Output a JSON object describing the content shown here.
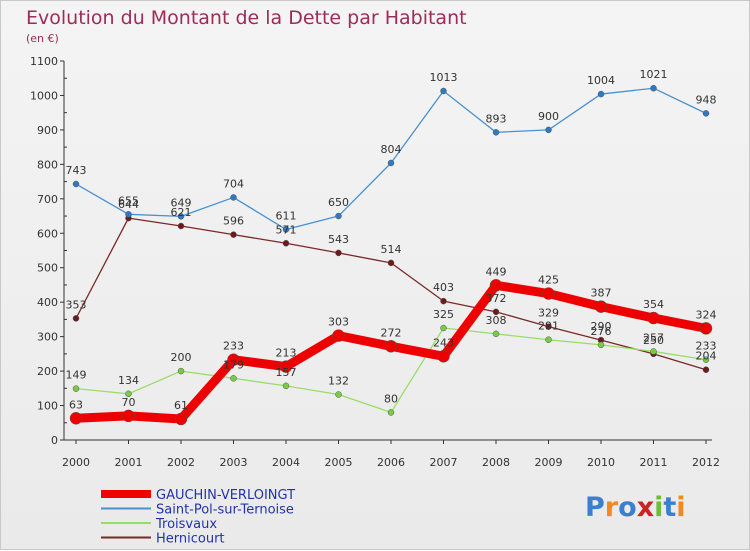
{
  "chart_data": {
    "type": "line",
    "title": "Evolution du Montant de la Dette par Habitant",
    "subtitle": "(en €)",
    "xlabel": "",
    "ylabel": "",
    "ylim": [
      0,
      1100
    ],
    "yticks": [
      0,
      100,
      200,
      300,
      400,
      500,
      600,
      700,
      800,
      900,
      1000,
      1100
    ],
    "categories": [
      "2000",
      "2001",
      "2002",
      "2003",
      "2004",
      "2005",
      "2006",
      "2007",
      "2008",
      "2009",
      "2010",
      "2011",
      "2012"
    ],
    "series": [
      {
        "name": "Hernicourt",
        "color": "#7a2828",
        "values": [
          353,
          644,
          621,
          596,
          571,
          543,
          514,
          403,
          372,
          329,
          290,
          250,
          204
        ]
      },
      {
        "name": "Troisvaux",
        "color": "#99dd66",
        "values": [
          149,
          134,
          200,
          179,
          157,
          132,
          80,
          325,
          308,
          291,
          276,
          257,
          233
        ]
      },
      {
        "name": "Saint-Pol-sur-Ternoise",
        "color": "#4a90d0",
        "values": [
          743,
          655,
          649,
          704,
          611,
          650,
          804,
          1013,
          893,
          900,
          1004,
          1021,
          948
        ]
      },
      {
        "name": "GAUCHIN-VERLOINGT",
        "color": "#ee0000",
        "values": [
          63,
          70,
          61,
          233,
          213,
          303,
          272,
          243,
          449,
          425,
          387,
          354,
          324
        ]
      }
    ],
    "legend": [
      "GAUCHIN-VERLOINGT",
      "Saint-Pol-sur-Ternoise",
      "Troisvaux",
      "Hernicourt"
    ],
    "legend_position": "bottom-left",
    "grid": false
  },
  "branding": {
    "logo_text": "Proxiti",
    "logo_letters": [
      "P",
      "r",
      "o",
      "x",
      "i",
      "t",
      "i"
    ]
  }
}
